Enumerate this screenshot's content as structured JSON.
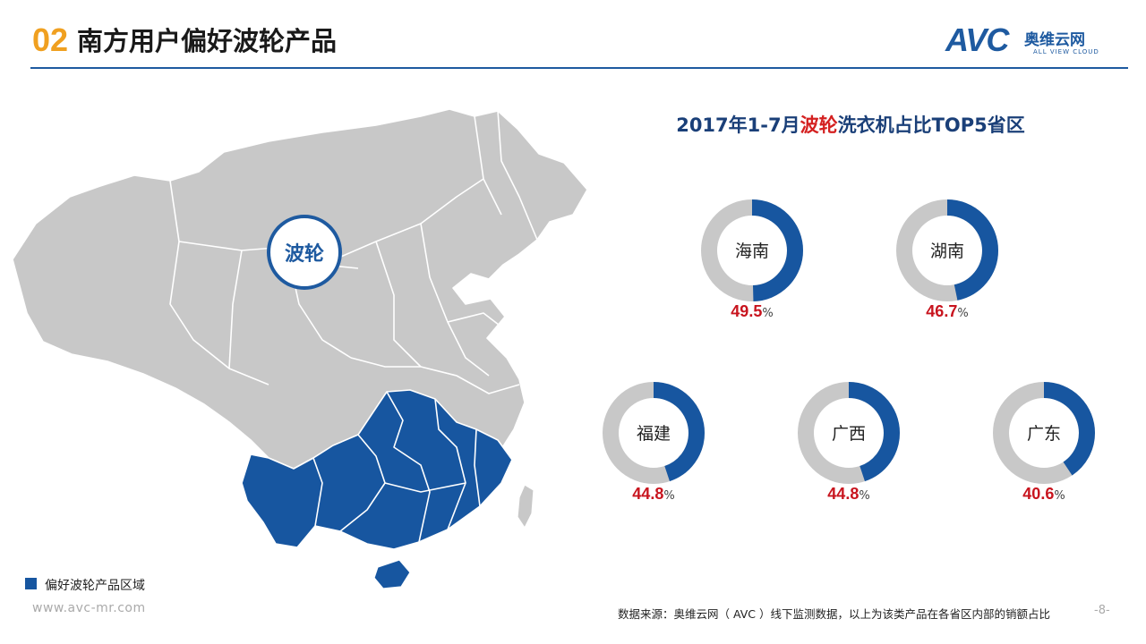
{
  "header": {
    "section_number": "02",
    "title": "南方用户偏好波轮产品",
    "logo_text": "AVC",
    "logo_cn": "奥维云网",
    "logo_en": "ALL VIEW CLOUD"
  },
  "map": {
    "badge": "波轮",
    "legend_label": "偏好波轮产品区域",
    "highlight_color": "#1756a0",
    "base_color": "#c8c8c8"
  },
  "chart_data": {
    "type": "donut",
    "title_prefix": "2017年1-7月",
    "title_highlight": "波轮",
    "title_suffix": "洗衣机占比TOP5省区",
    "categories": [
      "海南",
      "湖南",
      "福建",
      "广西",
      "广东"
    ],
    "values": [
      49.5,
      46.7,
      44.8,
      44.8,
      40.6
    ],
    "value_labels": [
      "49.5",
      "46.7",
      "44.8",
      "44.8",
      "40.6"
    ],
    "unit": "%",
    "colors": {
      "value": "#1756a0",
      "remainder": "#c8c8c8",
      "value_text": "#c8141e"
    }
  },
  "footer": {
    "url": "www.avc-mr.com",
    "source": "数据来源：奥维云网（ AVC ）线下监测数据，以上为该类产品在各省区内部的销额占比",
    "page": "-8-"
  }
}
